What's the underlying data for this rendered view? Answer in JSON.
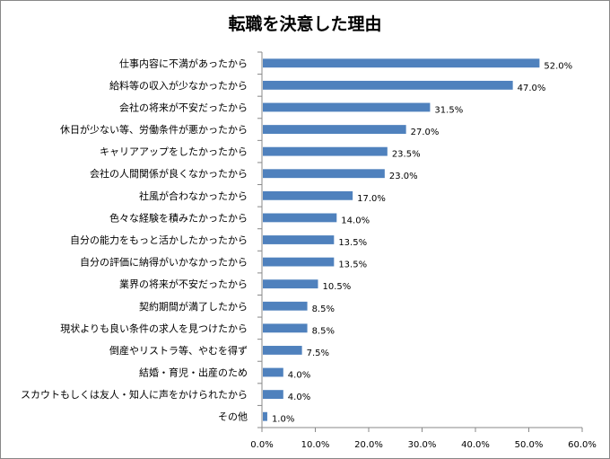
{
  "chart_data": {
    "type": "bar",
    "orientation": "horizontal",
    "title": "転職を決意した理由",
    "xlabel": "",
    "ylabel": "",
    "xlim": [
      0,
      60
    ],
    "x_ticks": [
      "0.0%",
      "10.0%",
      "20.0%",
      "30.0%",
      "40.0%",
      "50.0%",
      "60.0%"
    ],
    "grid": false,
    "legend": "none",
    "bar_color": "#4F81BD",
    "categories": [
      "仕事内容に不満があったから",
      "給料等の収入が少なかったから",
      "会社の将来が不安だったから",
      "休日が少ない等、労働条件が悪かったから",
      "キャリアアップをしたかったから",
      "会社の人間関係が良くなかったから",
      "社風が合わなかったから",
      "色々な経験を積みたかったから",
      "自分の能力をもっと活かしたかったから",
      "自分の評価に納得がいかなかったから",
      "業界の将来が不安だったから",
      "契約期間が満了したから",
      "現状よりも良い条件の求人を見つけたから",
      "倒産やリストラ等、やむを得ず",
      "結婚・育児・出産のため",
      "スカウトもしくは友人・知人に声をかけられたから",
      "その他"
    ],
    "values": [
      52.0,
      47.0,
      31.5,
      27.0,
      23.5,
      23.0,
      17.0,
      14.0,
      13.5,
      13.5,
      10.5,
      8.5,
      8.5,
      7.5,
      4.0,
      4.0,
      1.0
    ],
    "data_labels": [
      "52.0%",
      "47.0%",
      "31.5%",
      "27.0%",
      "23.5%",
      "23.0%",
      "17.0%",
      "14.0%",
      "13.5%",
      "13.5%",
      "10.5%",
      "8.5%",
      "8.5%",
      "7.5%",
      "4.0%",
      "4.0%",
      "1.0%"
    ]
  }
}
